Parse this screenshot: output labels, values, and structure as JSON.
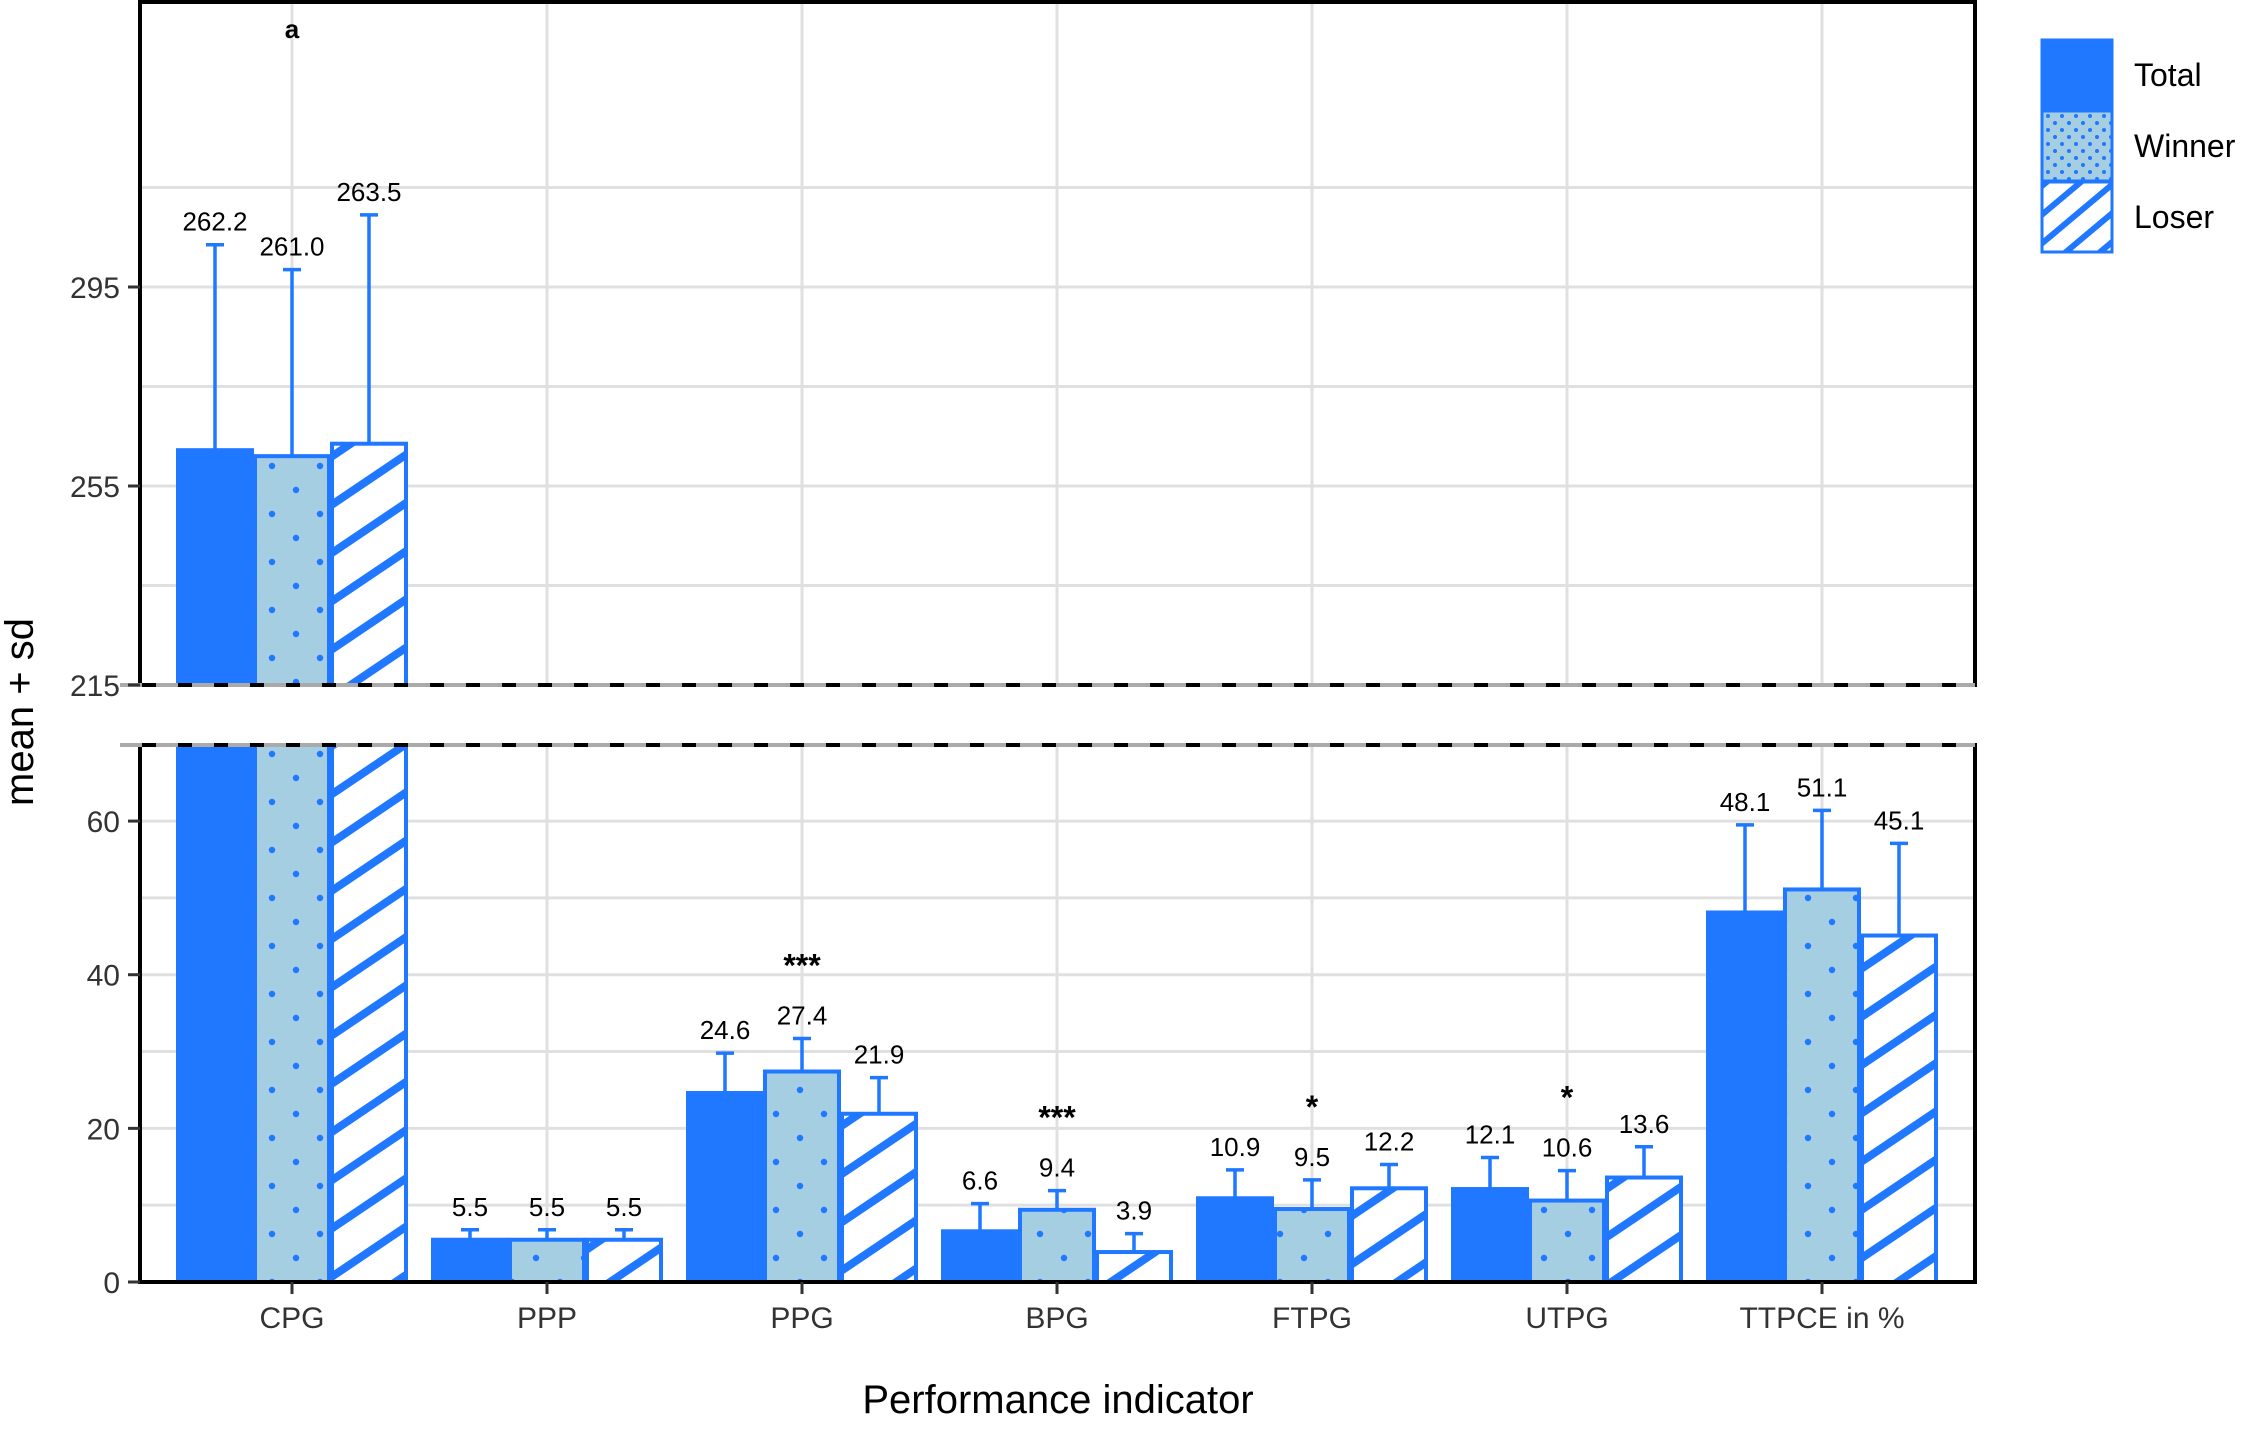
{
  "chart_data": {
    "type": "bar",
    "title": "",
    "xlabel": "Performance indicator",
    "ylabel": "mean + sd",
    "categories": [
      "CPG",
      "PPP",
      "PPG",
      "BPG",
      "FTPG",
      "UTPG",
      "TTPCE in %"
    ],
    "series": [
      {
        "name": "Total",
        "pattern": "solid",
        "values": [
          262.2,
          5.5,
          24.6,
          6.6,
          10.9,
          12.1,
          48.1
        ],
        "sd_top": [
          303.5,
          6.8,
          29.8,
          10.2,
          14.6,
          16.2,
          59.5
        ]
      },
      {
        "name": "Winner",
        "pattern": "dots",
        "values": [
          261.0,
          5.5,
          27.4,
          9.4,
          9.5,
          10.6,
          51.1
        ],
        "sd_top": [
          298.5,
          6.8,
          31.7,
          11.9,
          13.3,
          14.5,
          61.4
        ]
      },
      {
        "name": "Loser",
        "pattern": "stripes",
        "values": [
          263.5,
          5.5,
          21.9,
          3.9,
          12.2,
          13.6,
          45.1
        ],
        "sd_top": [
          309.5,
          6.8,
          26.6,
          6.3,
          15.3,
          17.6,
          57.1
        ]
      }
    ],
    "value_labels": [
      [
        "262.2",
        "5.5",
        "24.6",
        "6.6",
        "10.9",
        "12.1",
        "48.1"
      ],
      [
        "261.0",
        "5.5",
        "27.4",
        "9.4",
        "9.5",
        "10.6",
        "51.1"
      ],
      [
        "263.5",
        "5.5",
        "21.9",
        "3.9",
        "12.2",
        "13.6",
        "45.1"
      ]
    ],
    "annotations": [
      {
        "category": "CPG",
        "text": "a"
      },
      {
        "category": "PPG",
        "text": "***"
      },
      {
        "category": "BPG",
        "text": "***"
      },
      {
        "category": "FTPG",
        "text": "*"
      },
      {
        "category": "UTPG",
        "text": "*"
      }
    ],
    "axis_break": {
      "upper_panel_ylim": [
        215,
        320
      ],
      "upper_ticks": [
        215,
        255,
        295
      ],
      "lower_panel_ylim": [
        0,
        70
      ],
      "lower_ticks": [
        0,
        20,
        40,
        60
      ]
    },
    "grid": true,
    "legend_position": "right",
    "colors": {
      "accent": "#1f78ff",
      "winner_fill": "#a6cee3",
      "grid": "#e0e0e0",
      "break_line": "#aaaaaa"
    }
  }
}
